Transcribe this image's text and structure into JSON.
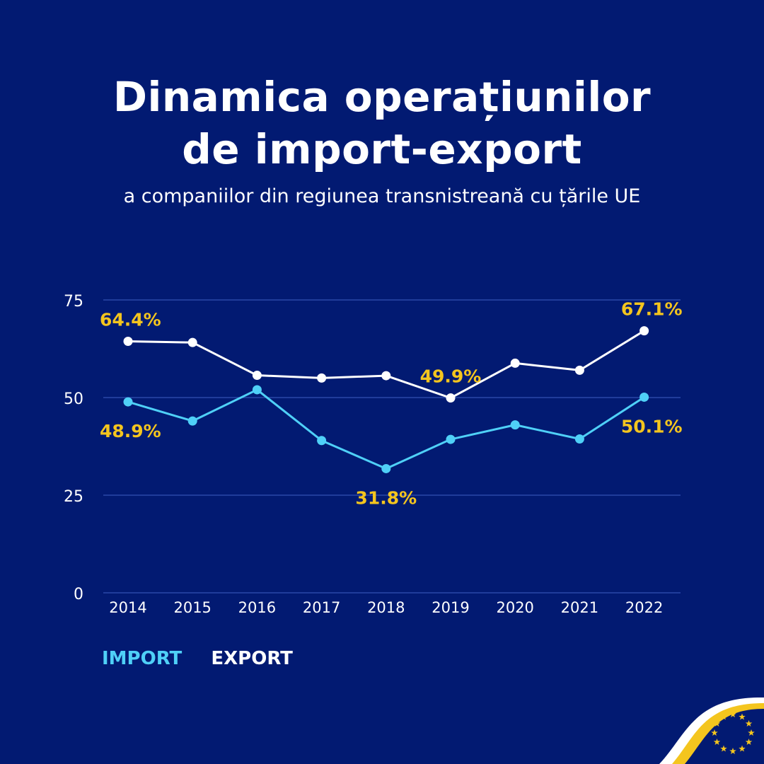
{
  "title_line1": "Dinamica operațiunilor",
  "title_line2": "de import-export",
  "subtitle": "a companiilor din regiunea transnistreană cu țările UE",
  "colors": {
    "background": "#021a72",
    "import": "#4fd0f7",
    "export": "#ffffff",
    "label": "#f4c51e",
    "grid": "#2b47a8"
  },
  "chart_data": {
    "type": "line",
    "categories": [
      "2014",
      "2015",
      "2016",
      "2017",
      "2018",
      "2019",
      "2020",
      "2021",
      "2022"
    ],
    "ylim": [
      0,
      75
    ],
    "yticks": [
      "0",
      "25",
      "50",
      "75"
    ],
    "grid": true,
    "legend_placement": "bottom-left",
    "series": [
      {
        "name": "IMPORT",
        "key": "import",
        "values": [
          48.9,
          44.0,
          52.0,
          39.0,
          31.8,
          39.3,
          43.0,
          39.4,
          50.1
        ]
      },
      {
        "name": "EXPORT",
        "key": "export",
        "values": [
          64.4,
          64.1,
          55.7,
          55.0,
          55.6,
          49.9,
          58.8,
          57.0,
          67.1
        ]
      }
    ],
    "annotations": [
      {
        "series": "export",
        "index": 0,
        "text": "64.4%",
        "position": "above"
      },
      {
        "series": "export",
        "index": 5,
        "text": "49.9%",
        "position": "above"
      },
      {
        "series": "export",
        "index": 8,
        "text": "67.1%",
        "position": "above"
      },
      {
        "series": "import",
        "index": 0,
        "text": "48.9%",
        "position": "below"
      },
      {
        "series": "import",
        "index": 4,
        "text": "31.8%",
        "position": "below"
      },
      {
        "series": "import",
        "index": 8,
        "text": "50.1%",
        "position": "below"
      }
    ]
  },
  "legend": {
    "import_label": "IMPORT",
    "export_label": "EXPORT"
  },
  "logo": {
    "name": "eu-flag-icon"
  }
}
